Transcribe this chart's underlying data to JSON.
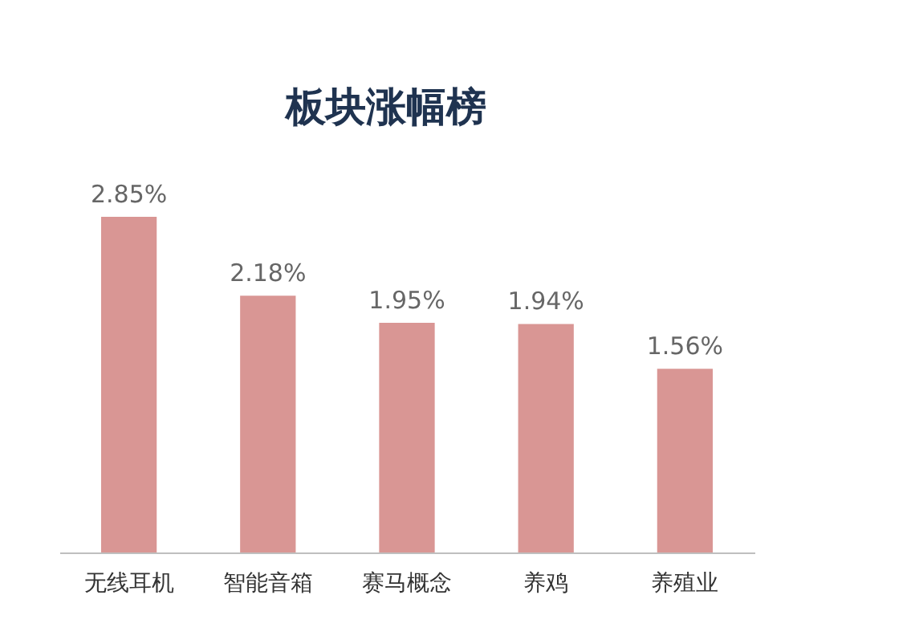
{
  "chart_data": {
    "type": "bar",
    "title": "板块涨幅榜",
    "categories": [
      "无线耳机",
      "智能音箱",
      "赛马概念",
      "养鸡",
      "养殖业"
    ],
    "values": [
      2.85,
      2.18,
      1.95,
      1.94,
      1.56
    ],
    "value_labels": [
      "2.85%",
      "2.18%",
      "1.95%",
      "1.94%",
      "1.56%"
    ],
    "color": "#d99694"
  }
}
